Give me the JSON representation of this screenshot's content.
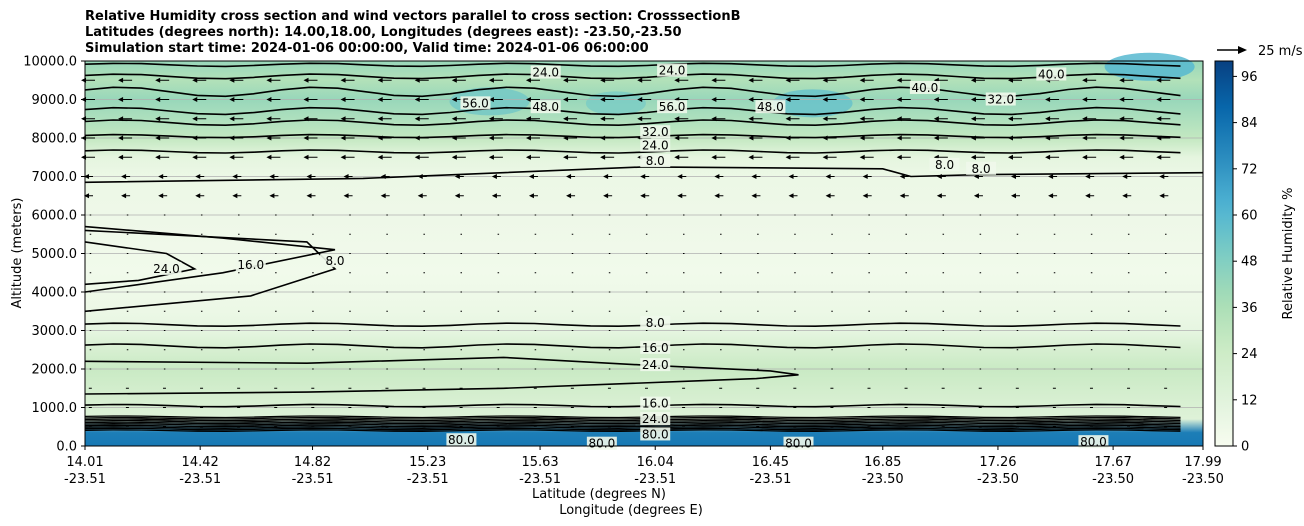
{
  "chart_data": {
    "type": "heatmap",
    "title_lines": [
      "Relative Humidity cross section and wind vectors parallel to cross section: CrosssectionB",
      "Latitudes (degrees north): 14.00,18.00, Longitudes (degrees east): -23.50,-23.50",
      "Simulation start time: 2024-01-06 00:00:00, Valid time: 2024-01-06 06:00:00"
    ],
    "ylabel": "Altitude (meters)",
    "xlabel_lines": [
      "Latitude (degrees N)",
      "Longitude (degrees E)"
    ],
    "x_range": [
      14.01,
      17.99
    ],
    "y_range": [
      0,
      10000
    ],
    "y_ticks": [
      "0.0",
      "1000.0",
      "2000.0",
      "3000.0",
      "4000.0",
      "5000.0",
      "6000.0",
      "7000.0",
      "8000.0",
      "9000.0",
      "10000.0"
    ],
    "x_ticks": [
      {
        "lat": "14.01",
        "lon": "-23.51"
      },
      {
        "lat": "14.42",
        "lon": "-23.51"
      },
      {
        "lat": "14.82",
        "lon": "-23.51"
      },
      {
        "lat": "15.23",
        "lon": "-23.51"
      },
      {
        "lat": "15.63",
        "lon": "-23.51"
      },
      {
        "lat": "16.04",
        "lon": "-23.51"
      },
      {
        "lat": "16.45",
        "lon": "-23.51"
      },
      {
        "lat": "16.85",
        "lon": "-23.50"
      },
      {
        "lat": "17.26",
        "lon": "-23.50"
      },
      {
        "lat": "17.67",
        "lon": "-23.50"
      },
      {
        "lat": "17.99",
        "lon": "-23.50"
      }
    ],
    "colorbar": {
      "label": "Relative Humidity %",
      "ticks": [
        "0",
        "12",
        "24",
        "36",
        "48",
        "60",
        "72",
        "84",
        "96"
      ],
      "range": [
        0,
        100
      ]
    },
    "quiver_key": "25 m/s",
    "grid": "horizontal",
    "rh_profile": [
      {
        "alt": 0,
        "rh": 82
      },
      {
        "alt": 350,
        "rh": 80
      },
      {
        "alt": 700,
        "rh": 14
      },
      {
        "alt": 1200,
        "rh": 18
      },
      {
        "alt": 2000,
        "rh": 26
      },
      {
        "alt": 2500,
        "rh": 18
      },
      {
        "alt": 3000,
        "rh": 9
      },
      {
        "alt": 3500,
        "rh": 6
      },
      {
        "alt": 4500,
        "rh": 3
      },
      {
        "alt": 6000,
        "rh": 5
      },
      {
        "alt": 7000,
        "rh": 6
      },
      {
        "alt": 7500,
        "rh": 10
      },
      {
        "alt": 8000,
        "rh": 28
      },
      {
        "alt": 9000,
        "rh": 42
      },
      {
        "alt": 9500,
        "rh": 34
      },
      {
        "alt": 10000,
        "rh": 42
      }
    ],
    "contour_labels": [
      {
        "text": "8.0",
        "lat": 16.04,
        "alt": 3200
      },
      {
        "text": "16.0",
        "lat": 16.04,
        "alt": 2550
      },
      {
        "text": "24.0",
        "lat": 16.04,
        "alt": 2100
      },
      {
        "text": "16.0",
        "lat": 16.04,
        "alt": 1100
      },
      {
        "text": "24.0",
        "lat": 16.04,
        "alt": 700
      },
      {
        "text": "80.0",
        "lat": 16.04,
        "alt": 300
      },
      {
        "text": "8.0",
        "lat": 16.04,
        "alt": 7400
      },
      {
        "text": "24.0",
        "lat": 16.04,
        "alt": 7800
      },
      {
        "text": "32.0",
        "lat": 16.04,
        "alt": 8150
      },
      {
        "text": "24.0",
        "lat": 15.65,
        "alt": 9700
      },
      {
        "text": "24.0",
        "lat": 16.1,
        "alt": 9750
      },
      {
        "text": "48.0",
        "lat": 15.65,
        "alt": 8800
      },
      {
        "text": "48.0",
        "lat": 16.45,
        "alt": 8800
      },
      {
        "text": "56.0",
        "lat": 15.4,
        "alt": 8900
      },
      {
        "text": "56.0",
        "lat": 16.1,
        "alt": 8800
      },
      {
        "text": "40.0",
        "lat": 17.45,
        "alt": 9650
      },
      {
        "text": "40.0",
        "lat": 17.0,
        "alt": 9300
      },
      {
        "text": "32.0",
        "lat": 17.27,
        "alt": 9000
      },
      {
        "text": "24.0",
        "lat": 14.3,
        "alt": 4600
      },
      {
        "text": "16.0",
        "lat": 14.6,
        "alt": 4700
      },
      {
        "text": "8.0",
        "lat": 14.9,
        "alt": 4800
      },
      {
        "text": "8.0",
        "lat": 17.07,
        "alt": 7300
      },
      {
        "text": "8.0",
        "lat": 17.2,
        "alt": 7200
      },
      {
        "text": "80.0",
        "lat": 15.35,
        "alt": 150
      },
      {
        "text": "80.0",
        "lat": 15.85,
        "alt": 60
      },
      {
        "text": "80.0",
        "lat": 16.55,
        "alt": 60
      },
      {
        "text": "80.0",
        "lat": 17.6,
        "alt": 100
      }
    ]
  }
}
